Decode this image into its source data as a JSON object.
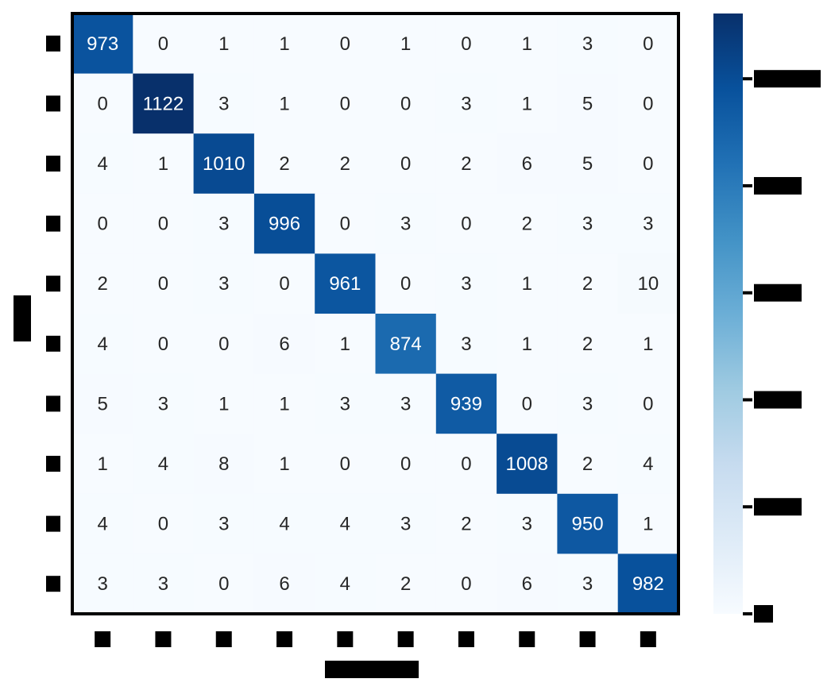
{
  "chart_data": {
    "type": "heatmap",
    "title": "",
    "xlabel": "",
    "ylabel": "",
    "rows": 10,
    "cols": 10,
    "values": [
      [
        973,
        0,
        1,
        1,
        0,
        1,
        0,
        1,
        3,
        0
      ],
      [
        0,
        1122,
        3,
        1,
        0,
        0,
        3,
        1,
        5,
        0
      ],
      [
        4,
        1,
        1010,
        2,
        2,
        0,
        2,
        6,
        5,
        0
      ],
      [
        0,
        0,
        3,
        996,
        0,
        3,
        0,
        2,
        3,
        3
      ],
      [
        2,
        0,
        3,
        0,
        961,
        0,
        3,
        1,
        2,
        10
      ],
      [
        4,
        0,
        0,
        6,
        1,
        874,
        3,
        1,
        2,
        1
      ],
      [
        5,
        3,
        1,
        1,
        3,
        3,
        939,
        0,
        3,
        0
      ],
      [
        1,
        4,
        8,
        1,
        0,
        0,
        0,
        1008,
        2,
        4
      ],
      [
        4,
        0,
        3,
        4,
        4,
        3,
        2,
        3,
        950,
        1
      ],
      [
        3,
        3,
        0,
        6,
        4,
        2,
        0,
        6,
        3,
        982
      ]
    ],
    "value_range": [
      0,
      1122
    ],
    "colormap": "Blues",
    "colorbar_ticks": [
      0,
      200,
      400,
      600,
      800,
      1000
    ],
    "low_color": "#f7fbff",
    "high_color": "#08306b",
    "light_text_color": "#ffffff",
    "dark_text_color": "#262626",
    "border_color": "#000000",
    "tick_mark_color": "#000000"
  }
}
